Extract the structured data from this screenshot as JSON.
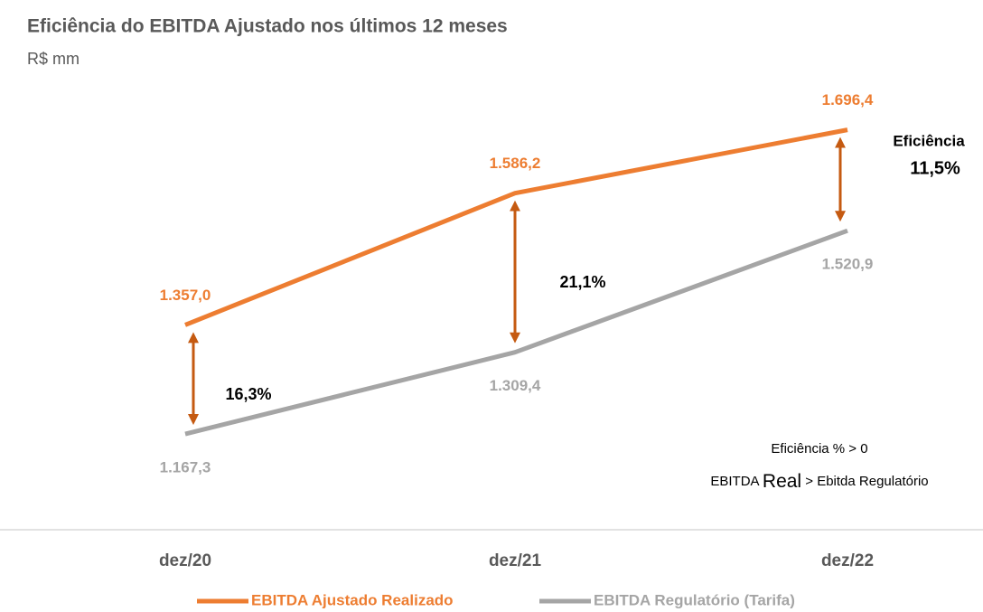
{
  "chart_data": {
    "type": "line",
    "title": "Eficiência do EBITDA Ajustado nos últimos 12 meses",
    "subtitle": "R$ mm",
    "categories": [
      "dez/20",
      "dez/21",
      "dez/22"
    ],
    "series": [
      {
        "name": "EBITDA Ajustado Realizado",
        "color": "#ed7d31",
        "values": [
          1357.0,
          1586.2,
          1696.4
        ],
        "value_labels": [
          "1.357,0",
          "1.586,2",
          "1.696,4"
        ]
      },
      {
        "name": "EBITDA Regulatório  (Tarifa)",
        "color": "#a5a5a5",
        "values": [
          1167.3,
          1309.4,
          1520.9
        ],
        "value_labels": [
          "1.167,3",
          "1.309,4",
          "1.520,9"
        ]
      }
    ],
    "ylim": [
      1040,
      1765
    ],
    "arrow_color": "#c55a11",
    "efficiency_labels": [
      "16,3%",
      "21,1%",
      "11,5%"
    ],
    "efficiency_title": "Eficiência",
    "note": [
      "Eficiência % > 0",
      [
        "EBITDA ",
        "Real",
        " > Ebitda Regulatório"
      ]
    ]
  }
}
